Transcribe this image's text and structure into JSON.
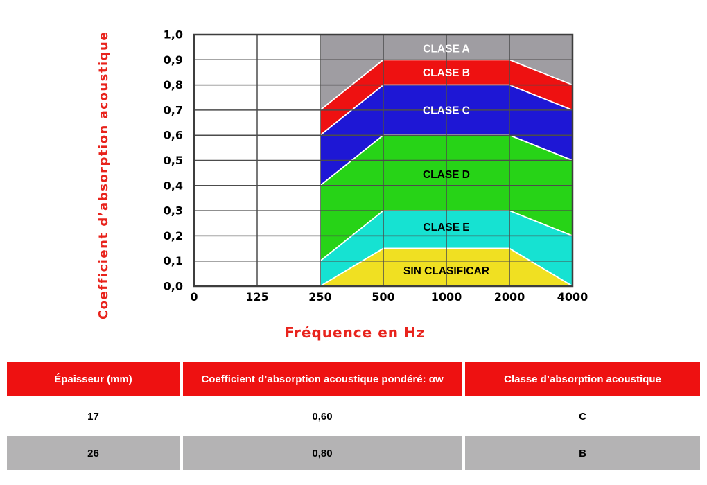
{
  "chart_data": {
    "type": "area",
    "title": "",
    "xlabel": "Fréquence en Hz",
    "ylabel": "Coefficient d’absorption acoustique",
    "axis_label_color": "#e8231c",
    "grid": true,
    "grid_color": "#4c4c4c",
    "border_color": "#3d3d3d",
    "x_tick_labels": [
      "0",
      "125",
      "250",
      "500",
      "1000",
      "2000",
      "4000"
    ],
    "x_tick_values": [
      0,
      125,
      250,
      500,
      1000,
      2000,
      4000
    ],
    "y_tick_labels": [
      "1,0",
      "0,9",
      "0,8",
      "0,7",
      "0,6",
      "0,5",
      "0,4",
      "0,3",
      "0,2",
      "0,1",
      "0,0"
    ],
    "ylim": [
      0,
      1
    ],
    "band_freqs": [
      250,
      500,
      2000,
      4000
    ],
    "bands": [
      {
        "label": "CLASE A",
        "color": "#9f9da2",
        "text_color": "#ffffff",
        "label_y": 0.945,
        "top": [
          1.0,
          1.0,
          1.0,
          1.0
        ],
        "bottom": [
          0.7,
          0.9,
          0.9,
          0.8
        ]
      },
      {
        "label": "CLASE B",
        "color": "#ee1111",
        "text_color": "#ffffff",
        "label_y": 0.85,
        "top": [
          0.7,
          0.9,
          0.9,
          0.8
        ],
        "bottom": [
          0.6,
          0.8,
          0.8,
          0.7
        ]
      },
      {
        "label": "CLASE C",
        "color": "#1e17d5",
        "text_color": "#ffffff",
        "label_y": 0.7,
        "top": [
          0.6,
          0.8,
          0.8,
          0.7
        ],
        "bottom": [
          0.4,
          0.6,
          0.6,
          0.5
        ]
      },
      {
        "label": "CLASE D",
        "color": "#27d317",
        "text_color": "#000000",
        "label_y": 0.445,
        "top": [
          0.4,
          0.6,
          0.6,
          0.5
        ],
        "bottom": [
          0.1,
          0.3,
          0.3,
          0.2
        ]
      },
      {
        "label": "CLASE E",
        "color": "#16e2d2",
        "text_color": "#000000",
        "label_y": 0.235,
        "top": [
          0.1,
          0.3,
          0.3,
          0.2
        ],
        "bottom": [
          0.0,
          0.15,
          0.15,
          0.0
        ]
      },
      {
        "label": "SIN CLASIFICAR",
        "color": "#f0e022",
        "text_color": "#000000",
        "label_y": 0.062,
        "top": [
          0.0,
          0.15,
          0.15,
          0.0
        ],
        "bottom": [
          0.0,
          0.0,
          0.0,
          0.0
        ]
      }
    ]
  },
  "table": {
    "header_bg": "#ee1111",
    "header_text_color": "#ffffff",
    "row_alt_bg": "#b4b3b4",
    "headers": [
      "Épaisseur (mm)",
      "Coefficient d’absorption acoustique pondéré: αw",
      "Classe d’absorption acoustique"
    ],
    "rows": [
      {
        "values": [
          "17",
          "0,60",
          "C"
        ]
      },
      {
        "values": [
          "26",
          "0,80",
          "B"
        ]
      }
    ]
  }
}
